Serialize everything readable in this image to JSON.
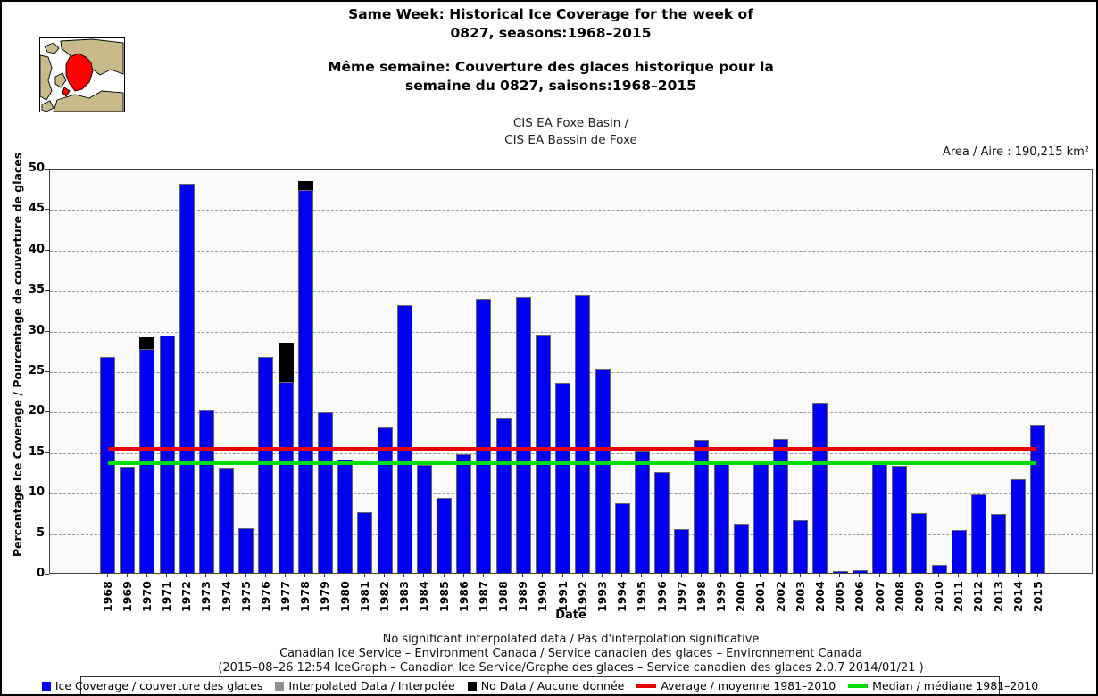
{
  "header": {
    "title_en_line1": "Same Week: Historical Ice Coverage for the week of",
    "title_en_line2": "0827, seasons:1968–2015",
    "title_fr_line1": "Même semaine: Couverture des glaces historique pour la",
    "title_fr_line2": "semaine du 0827, saisons:1968–2015",
    "region_line1": "CIS EA Foxe Basin /",
    "region_line2": "CIS EA Bassin de Foxe",
    "area_label": "Area / Aire : 190,215 km²"
  },
  "chart_data": {
    "type": "bar",
    "title": "Same Week: Historical Ice Coverage for the week of 0827, seasons:1968-2015",
    "xlabel": "Date",
    "ylabel": "Percentage Ice Coverage / Pourcentage de couverture de glaces",
    "ylim": [
      0,
      50
    ],
    "ytick_interval": 5,
    "grid": true,
    "legend_position": "bottom",
    "categories": [
      1968,
      1969,
      1970,
      1971,
      1972,
      1973,
      1974,
      1975,
      1976,
      1977,
      1978,
      1979,
      1980,
      1981,
      1982,
      1983,
      1984,
      1985,
      1986,
      1987,
      1988,
      1989,
      1990,
      1991,
      1992,
      1993,
      1994,
      1995,
      1996,
      1997,
      1998,
      1999,
      2000,
      2001,
      2002,
      2003,
      2004,
      2005,
      2006,
      2007,
      2008,
      2009,
      2010,
      2011,
      2012,
      2013,
      2014,
      2015
    ],
    "series": [
      {
        "name": "Ice Coverage / couverture des glaces",
        "color": "#0000f2",
        "values": [
          26.7,
          13.1,
          27.6,
          29.3,
          48.0,
          20.0,
          12.9,
          5.5,
          26.6,
          23.6,
          47.2,
          19.8,
          14.0,
          7.5,
          18.0,
          33.0,
          13.3,
          9.2,
          14.7,
          33.8,
          19.0,
          34.0,
          29.4,
          23.5,
          34.2,
          25.1,
          8.6,
          15.1,
          12.4,
          5.4,
          16.4,
          13.4,
          6.1,
          13.7,
          16.5,
          6.5,
          20.9,
          0.2,
          0.3,
          13.6,
          13.2,
          7.4,
          1.0,
          5.3,
          9.7,
          7.3,
          11.6,
          18.3
        ]
      }
    ],
    "no_data_segments": [
      {
        "year": 1970,
        "from": 27.6,
        "to": 29.1
      },
      {
        "year": 1977,
        "from": 23.6,
        "to": 28.4
      },
      {
        "year": 1978,
        "from": 47.2,
        "to": 48.3
      }
    ],
    "reference_lines": [
      {
        "name": "Average / moyenne 1981–2010",
        "value": 15.5,
        "color": "#e60000"
      },
      {
        "name": "Median / médiane 1981–2010",
        "value": 13.8,
        "color": "#00dc00"
      }
    ]
  },
  "legend": {
    "items": [
      {
        "swatch": "square",
        "color": "#0000f2",
        "label": "Ice Coverage / couverture des glaces"
      },
      {
        "swatch": "square",
        "color": "#8f8f8f",
        "label": "Interpolated Data / Interpolée"
      },
      {
        "swatch": "square",
        "color": "#000000",
        "label": "No Data / Aucune donnée"
      },
      {
        "swatch": "line",
        "color": "#e60000",
        "label": "Average / moyenne 1981–2010"
      },
      {
        "swatch": "line",
        "color": "#00dc00",
        "label": "Median / médiane 1981–2010"
      }
    ]
  },
  "footer": {
    "line1": "No significant interpolated data / Pas d'interpolation significative",
    "line2": "Canadian Ice Service – Environment Canada / Service canadien des glaces – Environnement Canada",
    "line3": "(2015–08–26 12:54 IceGraph – Canadian Ice Service/Graphe des glaces – Service canadien des glaces 2.0.7 2014/01/21 )"
  }
}
